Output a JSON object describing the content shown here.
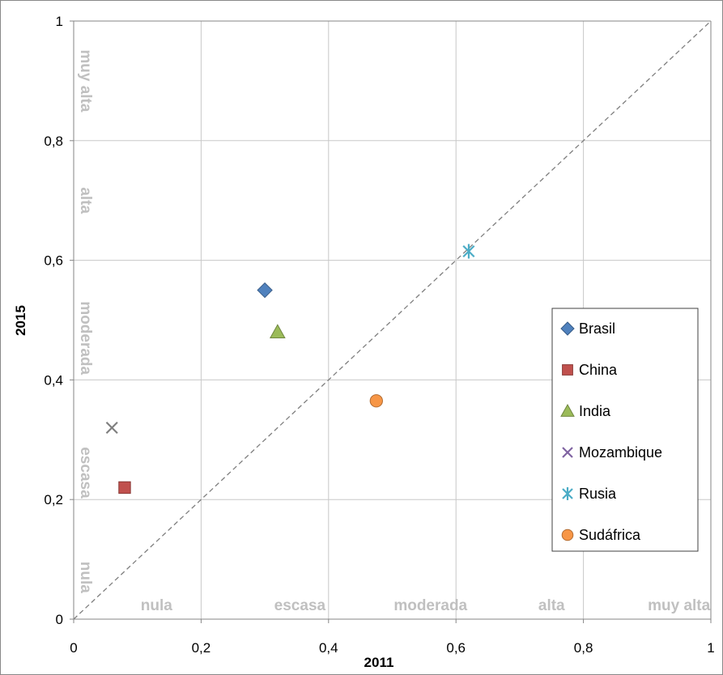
{
  "chart_data": {
    "type": "scatter",
    "xlabel": "2011",
    "ylabel": "2015",
    "xlim": [
      0,
      1
    ],
    "ylim": [
      0,
      1
    ],
    "x_ticks": [
      "0",
      "0,2",
      "0,4",
      "0,6",
      "0,8",
      "1"
    ],
    "y_ticks": [
      "0",
      "0,2",
      "0,4",
      "0,6",
      "0,8",
      "1"
    ],
    "grid": true,
    "diagonal_reference_line": true,
    "legend_position": "right",
    "x_bands": [
      "nula",
      "escasa",
      "moderada",
      "alta",
      "muy alta"
    ],
    "y_bands": [
      "nula",
      "escasa",
      "moderada",
      "alta",
      "muy alta"
    ],
    "series": [
      {
        "name": "Brasil",
        "marker": "diamond",
        "color": "#4f81bd",
        "x": 0.3,
        "y": 0.55
      },
      {
        "name": "China",
        "marker": "square",
        "color": "#c0504d",
        "x": 0.08,
        "y": 0.22
      },
      {
        "name": "India",
        "marker": "triangle",
        "color": "#9bbb59",
        "x": 0.32,
        "y": 0.48
      },
      {
        "name": "Mozambique",
        "marker": "x",
        "color": "#8064a2",
        "x": 0.06,
        "y": 0.32
      },
      {
        "name": "Rusia",
        "marker": "asterisk",
        "color": "#4bacc6",
        "x": 0.62,
        "y": 0.615
      },
      {
        "name": "Sudáfrica",
        "marker": "circle",
        "color": "#f79646",
        "x": 0.475,
        "y": 0.365
      }
    ]
  }
}
